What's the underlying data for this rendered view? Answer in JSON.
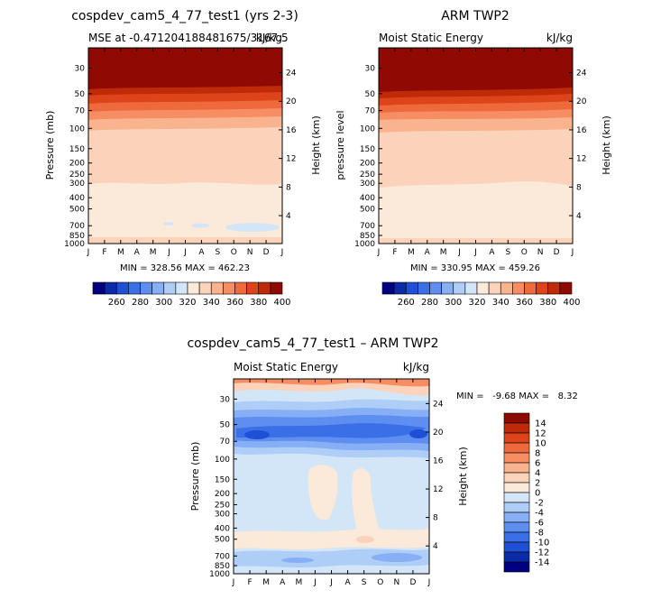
{
  "chart_data": [
    {
      "type": "contour",
      "title": "cospdev_cam5_4_77_test1 (yrs 2-3)",
      "subtitle_left": "MSE at -0.471204188481675/3167.5",
      "subtitle_right": "kJ/kg",
      "xlabel": "",
      "ylabel": "Pressure (mb)",
      "ylabel_right": "Height (km)",
      "x_ticks": [
        "J",
        "F",
        "M",
        "A",
        "M",
        "J",
        "J",
        "A",
        "S",
        "O",
        "N",
        "D",
        "J"
      ],
      "y_ticks_pressure": [
        "30",
        "50",
        "70",
        "100",
        "150",
        "200",
        "250",
        "300",
        "400",
        "500",
        "700",
        "850",
        "1000"
      ],
      "y_ticks_height": [
        "24",
        "20",
        "16",
        "12",
        "8",
        "4"
      ],
      "stats": "MIN = 328.56 MAX = 462.23",
      "colorbar_labels": [
        "260",
        "280",
        "300",
        "320",
        "340",
        "360",
        "380",
        "400"
      ],
      "contour_bands": [
        {
          "level": "< 340",
          "p_top": 1000,
          "p_bottom": 925
        },
        {
          "level": "340-350",
          "p_top": 925,
          "p_bottom": 320
        },
        {
          "level": "350-360",
          "p_top": 320,
          "p_bottom": 125
        },
        {
          "level": "360-370",
          "p_top": 125,
          "p_bottom": 100
        },
        {
          "level": "370-380",
          "p_top": 100,
          "p_bottom": 80
        },
        {
          "level": "380-390",
          "p_top": 80,
          "p_bottom": 68
        },
        {
          "level": "390-400",
          "p_top": 68,
          "p_bottom": 58
        },
        {
          "level": ">= 400",
          "p_top": 58,
          "p_bottom": 20
        }
      ],
      "min": 328.56,
      "max": 462.23
    },
    {
      "type": "contour",
      "title": "ARM TWP2",
      "subtitle_left": "Moist Static Energy",
      "subtitle_right": "kJ/kg",
      "xlabel": "",
      "ylabel": "pressure level",
      "ylabel_right": "Height (km)",
      "x_ticks": [
        "J",
        "F",
        "M",
        "A",
        "M",
        "J",
        "J",
        "A",
        "S",
        "O",
        "N",
        "D",
        "J"
      ],
      "y_ticks_pressure": [
        "30",
        "50",
        "70",
        "100",
        "150",
        "200",
        "250",
        "300",
        "400",
        "500",
        "700",
        "850",
        "1000"
      ],
      "y_ticks_height": [
        "24",
        "20",
        "16",
        "12",
        "8",
        "4"
      ],
      "stats": "MIN = 330.95 MAX = 459.26",
      "colorbar_labels": [
        "260",
        "280",
        "300",
        "320",
        "340",
        "360",
        "380",
        "400"
      ],
      "min": 330.95,
      "max": 459.26
    },
    {
      "type": "contour",
      "title": "cospdev_cam5_4_77_test1 – ARM TWP2",
      "subtitle_left": "Moist Static Energy",
      "subtitle_right": "kJ/kg",
      "xlabel": "",
      "ylabel": "Pressure (mb)",
      "ylabel_right": "Height (km)",
      "x_ticks": [
        "J",
        "F",
        "M",
        "A",
        "M",
        "J",
        "J",
        "A",
        "S",
        "O",
        "N",
        "D",
        "J"
      ],
      "y_ticks_pressure": [
        "30",
        "50",
        "70",
        "100",
        "150",
        "200",
        "250",
        "300",
        "400",
        "500",
        "700",
        "850",
        "1000"
      ],
      "y_ticks_height": [
        "24",
        "20",
        "16",
        "12",
        "8",
        "4"
      ],
      "stats": "MIN =   -9.68 MAX =   8.32",
      "colorbar_labels": [
        "14",
        "12",
        "10",
        "8",
        "6",
        "4",
        "2",
        "0",
        "-2",
        "-4",
        "-6",
        "-8",
        "-10",
        "-12",
        "-14"
      ],
      "min": -9.68,
      "max": 8.32
    }
  ],
  "colors": {
    "sequential": [
      "#000080",
      "#0a2aa8",
      "#1f4fd6",
      "#3a6fe8",
      "#5e8ff0",
      "#86aff5",
      "#aecdf7",
      "#d3e6f8",
      "#fbe9d9",
      "#fbd3bb",
      "#f9b48f",
      "#f68d63",
      "#ee6a3d",
      "#dd4419",
      "#bf2a08",
      "#8e0a02"
    ],
    "diverging": [
      "#8e0a02",
      "#bf2a08",
      "#dd4419",
      "#ee6a3d",
      "#f68d63",
      "#f9b48f",
      "#fbd3bb",
      "#fbe9d9",
      "#d3e6f8",
      "#aecdf7",
      "#86aff5",
      "#5e8ff0",
      "#3a6fe8",
      "#1f4fd6",
      "#0a2aa8",
      "#000080"
    ]
  }
}
